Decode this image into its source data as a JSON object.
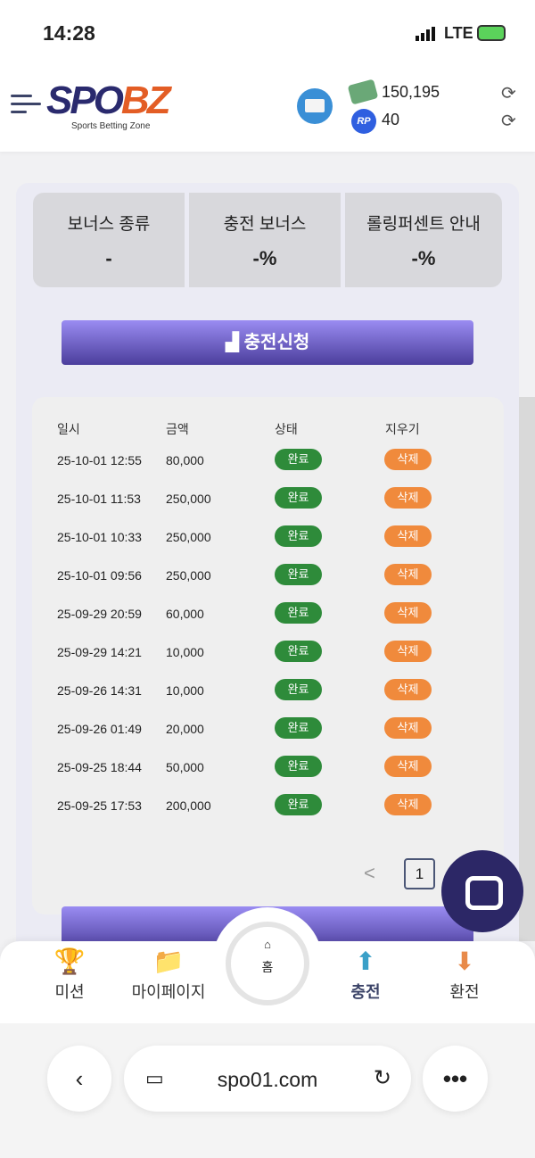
{
  "status_bar": {
    "time": "14:28",
    "network": "LTE"
  },
  "header": {
    "logo": "SPOBZ",
    "logo_sub": "Sports Betting Zone",
    "cash": "150,195",
    "points": "40",
    "points_badge": "RP"
  },
  "info_boxes": [
    {
      "title": "보너스 종류",
      "value": "-"
    },
    {
      "title": "충전 보너스",
      "value": "-%"
    },
    {
      "title": "롤링퍼센트 안내",
      "value": "-%"
    }
  ],
  "charge_button": "충전신청",
  "table": {
    "headers": [
      "일시",
      "금액",
      "상태",
      "지우기"
    ],
    "rows": [
      {
        "date": "25-10-01 12:55",
        "amount": "80,000",
        "status": "완료",
        "action": "삭제"
      },
      {
        "date": "25-10-01 11:53",
        "amount": "250,000",
        "status": "완료",
        "action": "삭제"
      },
      {
        "date": "25-10-01 10:33",
        "amount": "250,000",
        "status": "완료",
        "action": "삭제"
      },
      {
        "date": "25-10-01 09:56",
        "amount": "250,000",
        "status": "완료",
        "action": "삭제"
      },
      {
        "date": "25-09-29 20:59",
        "amount": "60,000",
        "status": "완료",
        "action": "삭제"
      },
      {
        "date": "25-09-29 14:21",
        "amount": "10,000",
        "status": "완료",
        "action": "삭제"
      },
      {
        "date": "25-09-26 14:31",
        "amount": "10,000",
        "status": "완료",
        "action": "삭제"
      },
      {
        "date": "25-09-26 01:49",
        "amount": "20,000",
        "status": "완료",
        "action": "삭제"
      },
      {
        "date": "25-09-25 18:44",
        "amount": "50,000",
        "status": "완료",
        "action": "삭제"
      },
      {
        "date": "25-09-25 17:53",
        "amount": "200,000",
        "status": "완료",
        "action": "삭제"
      }
    ]
  },
  "pagination": {
    "prev": "<",
    "current": "1"
  },
  "bottom_nav": [
    {
      "label": "미션",
      "icon": "trophy-icon"
    },
    {
      "label": "마이페이지",
      "icon": "folder-icon"
    },
    {
      "label": "홈",
      "icon": "home-icon"
    },
    {
      "label": "충전",
      "icon": "deposit-icon"
    },
    {
      "label": "환전",
      "icon": "withdraw-icon"
    }
  ],
  "browser": {
    "url": "spo01.com"
  },
  "colors": {
    "complete": "#2e8b3a",
    "delete": "#f08a3c",
    "primary": "#5a4db5",
    "chat": "#2c2766"
  }
}
